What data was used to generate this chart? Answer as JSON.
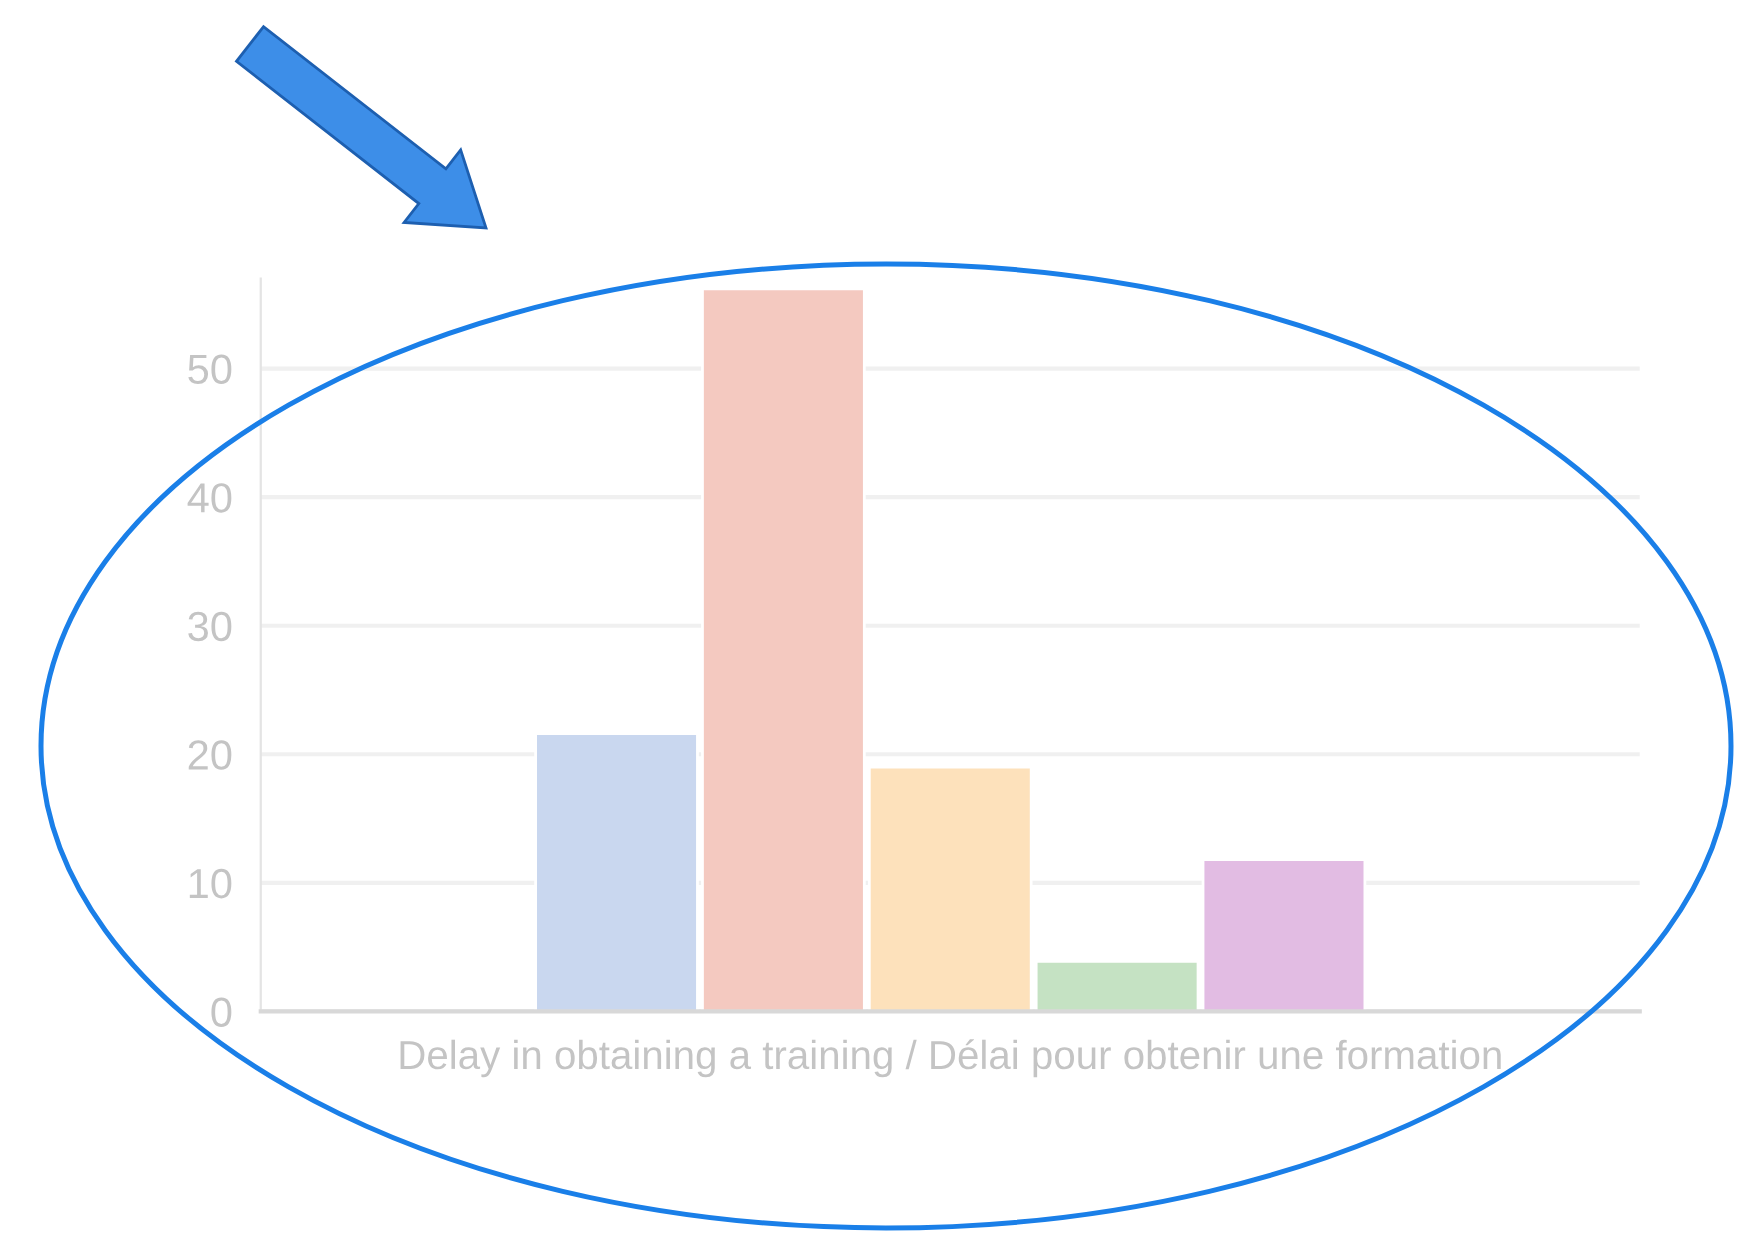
{
  "chart_data": {
    "type": "bar",
    "categories": [
      "Delay in obtaining a training / Délai pour obtenir une formation"
    ],
    "series": [
      {
        "color": "#c9d7ef",
        "values": [
          21.6
        ]
      },
      {
        "color": "#f4c9c0",
        "values": [
          56.2
        ]
      },
      {
        "color": "#fde1bb",
        "values": [
          19.0
        ]
      },
      {
        "color": "#c5e2c3",
        "values": [
          3.9
        ]
      },
      {
        "color": "#e2bce3",
        "values": [
          11.8
        ]
      }
    ],
    "ylim": [
      0,
      57
    ],
    "yticks": [
      0,
      10,
      20,
      30,
      40,
      50
    ],
    "grid": "y"
  }
}
